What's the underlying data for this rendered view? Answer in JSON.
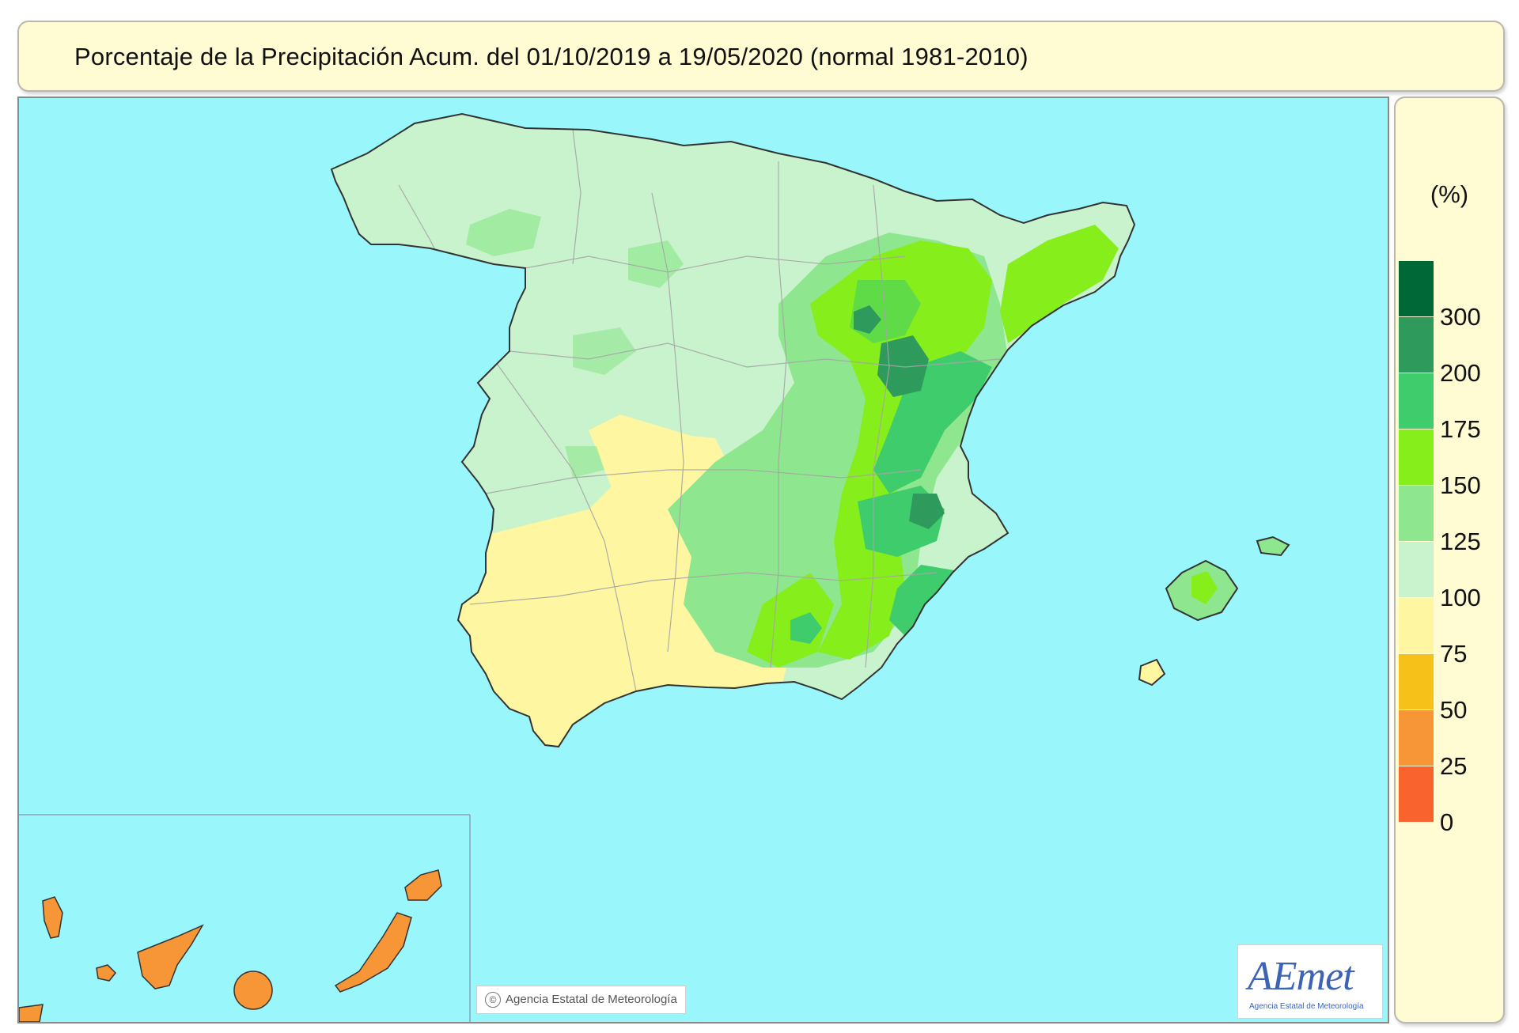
{
  "title": "Porcentaje de la Precipitación Acum. del 01/10/2019 a  19/05/2020  (normal 1981-2010)",
  "legend": {
    "unit": "(%)",
    "classes": [
      {
        "color": "#006837"
      },
      {
        "color": "#2e9a5c",
        "label": "300"
      },
      {
        "color": "#3fcc6d",
        "label": "200"
      },
      {
        "color": "#86ee1a",
        "label": "175"
      },
      {
        "color": "#8ee68e",
        "label": "150"
      },
      {
        "color": "#c8f3cc",
        "label": "125"
      },
      {
        "color": "#fff6a1",
        "label": "100"
      },
      {
        "color": "#f6c21a",
        "label": "75"
      },
      {
        "color": "#f79636",
        "label": "50"
      },
      {
        "color": "#f9632e",
        "label": "25"
      },
      {
        "label": "0"
      }
    ]
  },
  "copyright": "Agencia Estatal de Meteorología",
  "logo": {
    "text": "AEmet",
    "subtitle": "Agencia Estatal de Meteorología"
  },
  "colors": {
    "sea": "#99f7fc",
    "panel": "#fffbd3",
    "border_lines": "#a6a6a6"
  }
}
